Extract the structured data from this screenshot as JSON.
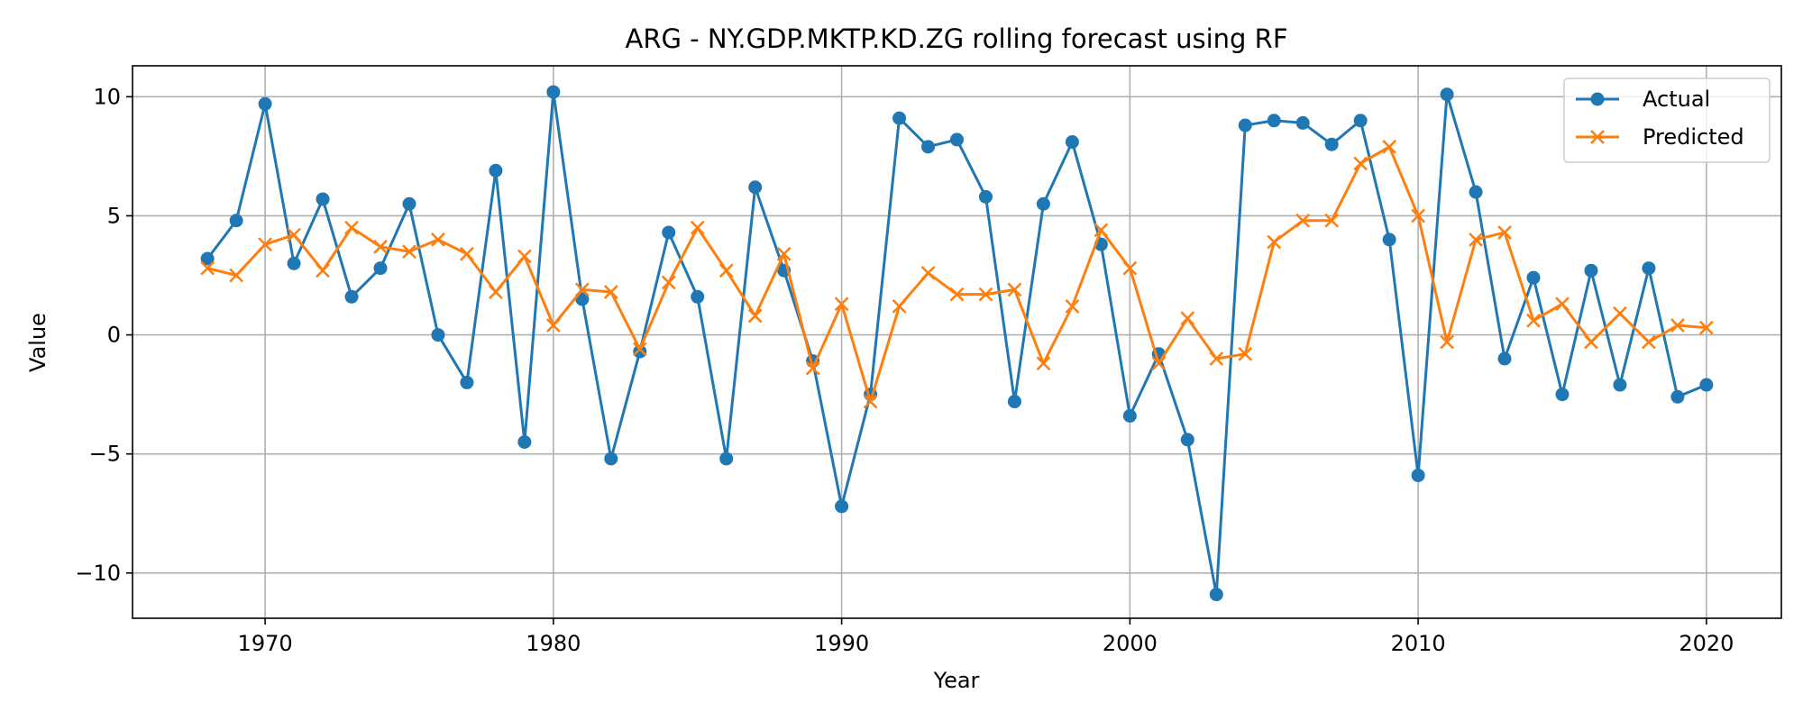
{
  "chart_data": {
    "type": "line",
    "title": "ARG - NY.GDP.MKTP.KD.ZG rolling forecast using RF",
    "xlabel": "Year",
    "ylabel": "Value",
    "xlim": [
      1965.4,
      2022.6
    ],
    "ylim": [
      -11.9,
      11.3
    ],
    "x_ticks": [
      1970,
      1980,
      1990,
      2000,
      2010,
      2020
    ],
    "y_ticks": [
      -10,
      -5,
      0,
      5,
      10
    ],
    "grid": true,
    "legend_position": "top-right",
    "x": [
      1968,
      1969,
      1970,
      1971,
      1972,
      1973,
      1974,
      1975,
      1976,
      1977,
      1978,
      1979,
      1980,
      1981,
      1982,
      1983,
      1984,
      1985,
      1986,
      1987,
      1988,
      1989,
      1990,
      1991,
      1992,
      1993,
      1994,
      1995,
      1996,
      1997,
      1998,
      1999,
      2000,
      2001,
      2002,
      2003,
      2004,
      2005,
      2006,
      2007,
      2008,
      2009,
      2010,
      2011,
      2012,
      2013,
      2014,
      2015,
      2016,
      2017,
      2018,
      2019,
      2020
    ],
    "series": [
      {
        "name": "Actual",
        "color": "#1f77b4",
        "marker": "circle",
        "values": [
          3.2,
          4.8,
          9.7,
          3.0,
          5.7,
          1.6,
          2.8,
          5.5,
          0.0,
          -2.0,
          6.9,
          -4.5,
          10.2,
          1.5,
          -5.2,
          -0.7,
          4.3,
          1.6,
          -5.2,
          6.2,
          2.7,
          -1.1,
          -7.2,
          -2.5,
          9.1,
          7.9,
          8.2,
          5.8,
          -2.8,
          5.5,
          8.1,
          3.8,
          -3.4,
          -0.8,
          -4.4,
          -10.9,
          8.8,
          9.0,
          8.9,
          8.0,
          9.0,
          4.0,
          -5.9,
          10.1,
          6.0,
          -1.0,
          2.4,
          -2.5,
          2.7,
          -2.1,
          2.8,
          -2.6,
          -2.1
        ]
      },
      {
        "name": "Predicted",
        "color": "#ff7f0e",
        "marker": "x",
        "values": [
          2.8,
          2.5,
          3.8,
          4.2,
          2.7,
          4.5,
          3.7,
          3.5,
          4.0,
          3.4,
          1.8,
          3.3,
          0.4,
          1.9,
          1.8,
          -0.6,
          2.2,
          4.5,
          2.7,
          0.8,
          3.4,
          -1.4,
          1.3,
          -2.8,
          1.2,
          2.6,
          1.7,
          1.7,
          1.9,
          -1.2,
          1.2,
          4.4,
          2.8,
          -1.2,
          0.7,
          -1.0,
          -0.8,
          3.9,
          4.8,
          4.8,
          7.2,
          7.9,
          5.0,
          -0.3,
          4.0,
          4.3,
          0.6,
          1.3,
          -0.3,
          0.9,
          -0.3,
          0.4,
          0.3
        ]
      }
    ]
  }
}
